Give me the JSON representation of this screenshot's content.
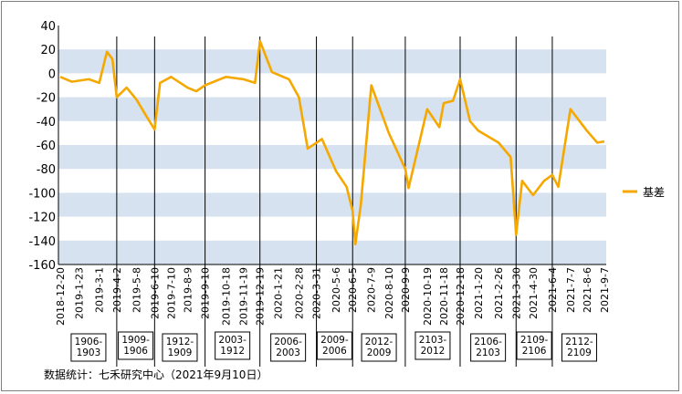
{
  "chart_data": {
    "type": "line",
    "ylim": [
      -160,
      40
    ],
    "yticks": [
      "40",
      "20",
      "0",
      "-20",
      "-40",
      "-60",
      "-80",
      "-100",
      "-120",
      "-140",
      "-160"
    ],
    "yband_color": "#d6e2ef",
    "series": [
      {
        "name": "基差",
        "color": "#f5a800",
        "x": [
          "2018-12-20",
          "2019-1-10",
          "2019-2-10",
          "2019-3-1",
          "2019-3-15",
          "2019-3-25",
          "2019-4-2",
          "2019-4-20",
          "2019-5-8",
          "2019-5-25",
          "2019-6-10",
          "2019-6-20",
          "2019-7-10",
          "2019-8-9",
          "2019-8-25",
          "2019-9-10",
          "2019-10-18",
          "2019-11-19",
          "2019-12-10",
          "2019-12-19",
          "2020-1-10",
          "2020-2-10",
          "2020-2-28",
          "2020-3-15",
          "2020-4-10",
          "2020-5-6",
          "2020-5-25",
          "2020-6-5",
          "2020-6-10",
          "2020-6-20",
          "2020-7-9",
          "2020-8-10",
          "2020-8-25",
          "2020-9-9",
          "2020-9-15",
          "2020-10-19",
          "2020-11-10",
          "2020-11-18",
          "2020-12-5",
          "2020-12-18",
          "2021-1-5",
          "2021-1-20",
          "2021-2-26",
          "2021-3-20",
          "2021-3-30",
          "2021-4-10",
          "2021-4-30",
          "2021-5-20",
          "2021-6-4",
          "2021-6-15",
          "2021-7-7",
          "2021-8-6",
          "2021-8-25",
          "2021-9-7"
        ],
        "values": [
          -3,
          -7,
          -5,
          -8,
          18,
          12,
          -20,
          -12,
          -22,
          -35,
          -47,
          -8,
          -3,
          -12,
          -15,
          -10,
          -3,
          -5,
          -8,
          27,
          1,
          -5,
          -20,
          -63,
          -55,
          -82,
          -95,
          -115,
          -143,
          -110,
          -10,
          -50,
          -65,
          -80,
          -96,
          -30,
          -45,
          -25,
          -23,
          -5,
          -40,
          -48,
          -58,
          -70,
          -135,
          -90,
          -102,
          -90,
          -85,
          -95,
          -30,
          -48,
          -58,
          -57
        ]
      }
    ],
    "x_tick_labels": [
      "2018-12-20",
      "2019-1-23",
      "2019-3-1",
      "2019-4-2",
      "2019-5-8",
      "2019-6-10",
      "2019-7-10",
      "2019-8-9",
      "2019-9-10",
      "2019-10-18",
      "2019-11-19",
      "2019-12-19",
      "2020-1-21",
      "2020-2-28",
      "2020-3-31",
      "2020-5-6",
      "2020-6-5",
      "2020-7-9",
      "2020-8-10",
      "2020-9-9",
      "2020-10-19",
      "2020-11-18",
      "2020-12-18",
      "2021-1-20",
      "2021-2-26",
      "2021-3-30",
      "2021-4-30",
      "2021-6-4",
      "2021-7-7",
      "2021-8-6",
      "2021-9-7"
    ],
    "period_boxes": [
      {
        "label": "1906-\n1903",
        "divider_x": "2019-4-2"
      },
      {
        "label": "1909-\n1906",
        "divider_x": "2019-6-10"
      },
      {
        "label": "1912-\n1909",
        "divider_x": "2019-9-10"
      },
      {
        "label": "2003-\n1912",
        "divider_x": "2019-12-19"
      },
      {
        "label": "2006-\n2003",
        "divider_x": "2020-3-31"
      },
      {
        "label": "2009-\n2006",
        "divider_x": "2020-6-5"
      },
      {
        "label": "2012-\n2009",
        "divider_x": "2020-9-9"
      },
      {
        "label": "2103-\n2012",
        "divider_x": "2020-12-18"
      },
      {
        "label": "2106-\n2103",
        "divider_x": "2021-3-30"
      },
      {
        "label": "2109-\n2106",
        "divider_x": "2021-6-4"
      },
      {
        "label": "2112-\n2109",
        "divider_x": ""
      }
    ],
    "grid": false,
    "legend_position": "right"
  },
  "source_note": "数据统计：七禾研究中心（2021年9月10日）"
}
